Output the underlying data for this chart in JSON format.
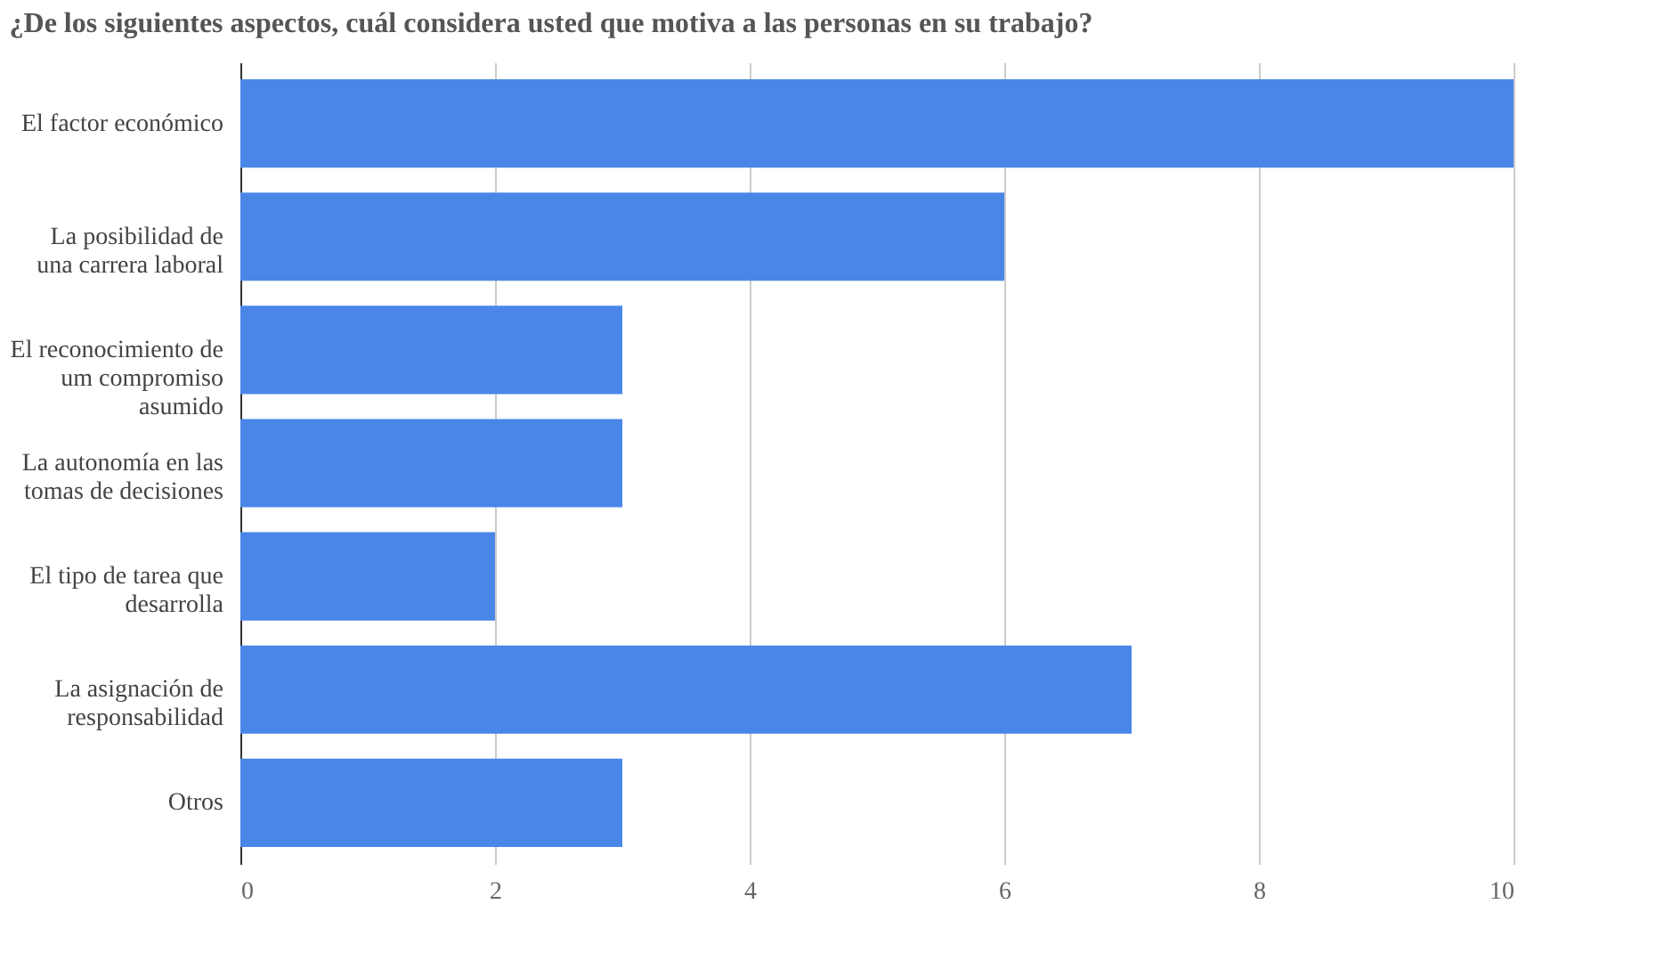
{
  "chart_data": {
    "type": "bar",
    "orientation": "horizontal",
    "title": "¿De los siguientes aspectos, cuál considera usted que motiva a las personas en su trabajo?",
    "categories": [
      "El factor económico",
      "La posibilidad de una carrera laboral",
      "El reconocimiento de um compromiso asumido",
      "La autonomía en las tomas de decisiones",
      "El tipo de tarea que desarrolla",
      "La asignación de responsabilidad",
      "Otros"
    ],
    "values": [
      10,
      6,
      3,
      3,
      2,
      7,
      3
    ],
    "color": "#4a86e8",
    "xlim": [
      0,
      10
    ],
    "xticks": [
      0,
      2,
      4,
      6,
      8,
      10
    ],
    "grid": "x"
  }
}
